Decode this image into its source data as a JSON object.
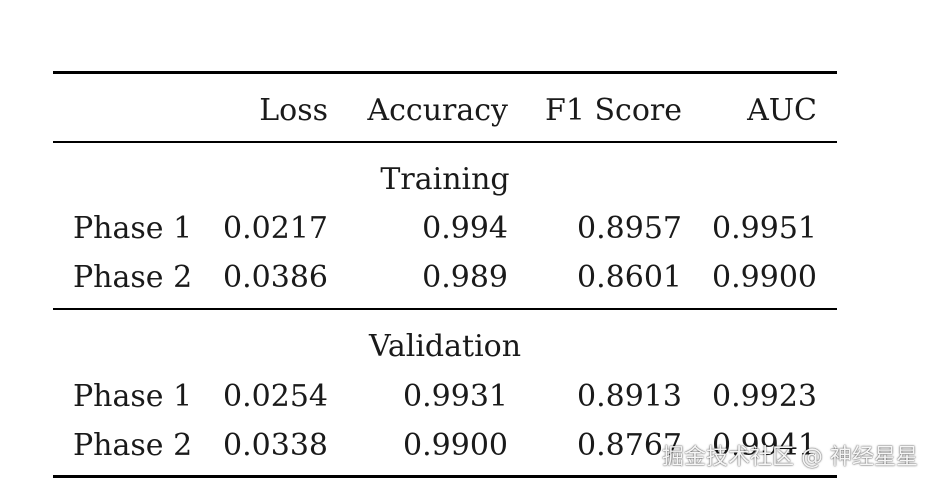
{
  "table": {
    "columns": [
      "",
      "Loss",
      "Accuracy",
      "F1 Score",
      "AUC"
    ],
    "sections": [
      {
        "title": "Training",
        "rows": [
          {
            "label": "Phase 1",
            "loss": "0.0217",
            "accuracy": "0.994",
            "f1": "0.8957",
            "auc": "0.9951"
          },
          {
            "label": "Phase 2",
            "loss": "0.0386",
            "accuracy": "0.989",
            "f1": "0.8601",
            "auc": "0.9900"
          }
        ]
      },
      {
        "title": "Validation",
        "rows": [
          {
            "label": "Phase 1",
            "loss": "0.0254",
            "accuracy": "0.9931",
            "f1": "0.8913",
            "auc": "0.9923"
          },
          {
            "label": "Phase 2",
            "loss": "0.0338",
            "accuracy": "0.9900",
            "f1": "0.8767",
            "auc": "0.9941"
          }
        ]
      }
    ]
  },
  "watermark": "掘金技术社区 @ 神经星星"
}
